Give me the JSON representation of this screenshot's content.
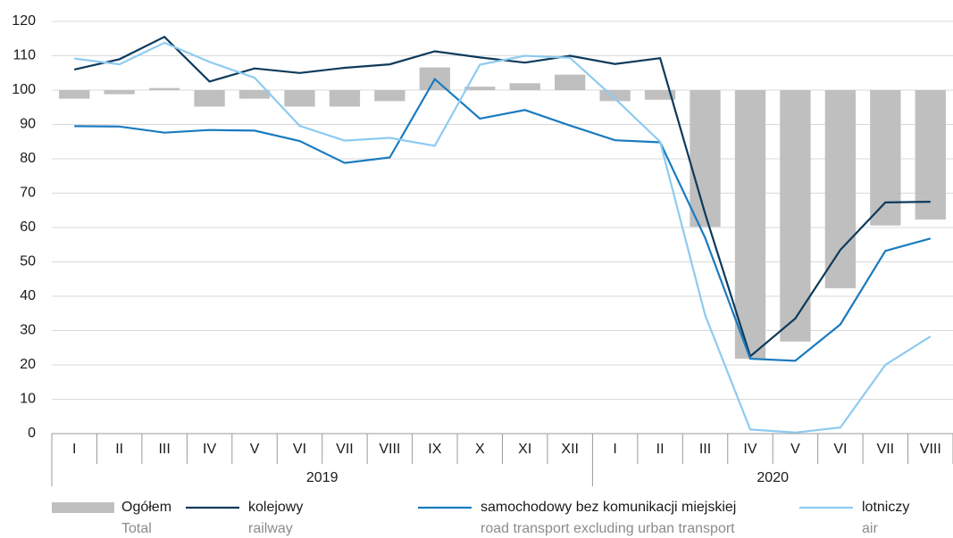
{
  "chart_data": {
    "type": "bar-line",
    "categories": [
      "I",
      "II",
      "III",
      "IV",
      "V",
      "VI",
      "VII",
      "VIII",
      "IX",
      "X",
      "XI",
      "XII",
      "I",
      "II",
      "III",
      "IV",
      "V",
      "VI",
      "VII",
      "VIII"
    ],
    "years": [
      "2019",
      "2020"
    ],
    "ylim": [
      0,
      120
    ],
    "yticks": [
      0,
      10,
      20,
      30,
      40,
      50,
      60,
      70,
      80,
      90,
      100,
      110,
      120
    ],
    "grid": true,
    "bar_base": 100,
    "series": [
      {
        "name": "Ogółem",
        "name_en": "Total",
        "type": "bar",
        "color": "#bfbfbf",
        "values": [
          97.5,
          98.8,
          100.6,
          95.2,
          97.5,
          95.2,
          95.2,
          96.8,
          106.6,
          101,
          102,
          104.5,
          96.8,
          97.2,
          60.2,
          21.8,
          26.8,
          42.3,
          60.6,
          62.3
        ]
      },
      {
        "name": "kolejowy",
        "name_en": "railway",
        "type": "line",
        "color": "#0d3a5c",
        "values": [
          106,
          109,
          115.5,
          102.5,
          106.3,
          105,
          106.5,
          107.5,
          111.3,
          109.5,
          108,
          110,
          107.6,
          109.3,
          64,
          22.5,
          33.5,
          53.5,
          67.3,
          67.5
        ]
      },
      {
        "name": "samochodowy bez komunikacji miejskiej",
        "name_en": "road transport excluding urban transport",
        "type": "line",
        "color": "#1a7bbf",
        "values": [
          89.5,
          89.4,
          87.6,
          88.4,
          88.2,
          85.2,
          78.8,
          80.4,
          103.2,
          91.7,
          94.2,
          89.7,
          85.4,
          84.8,
          57,
          21.8,
          21.2,
          31.8,
          53.2,
          56.8
        ]
      },
      {
        "name": "lotniczy",
        "name_en": "air",
        "type": "line",
        "color": "#8ecbf0",
        "values": [
          109.2,
          107.5,
          113.8,
          108.2,
          103.6,
          89.6,
          85.3,
          86.1,
          83.8,
          107.4,
          110,
          109.4,
          97.5,
          85,
          34.5,
          1.2,
          0.3,
          1.8,
          20,
          28.3
        ]
      }
    ]
  }
}
